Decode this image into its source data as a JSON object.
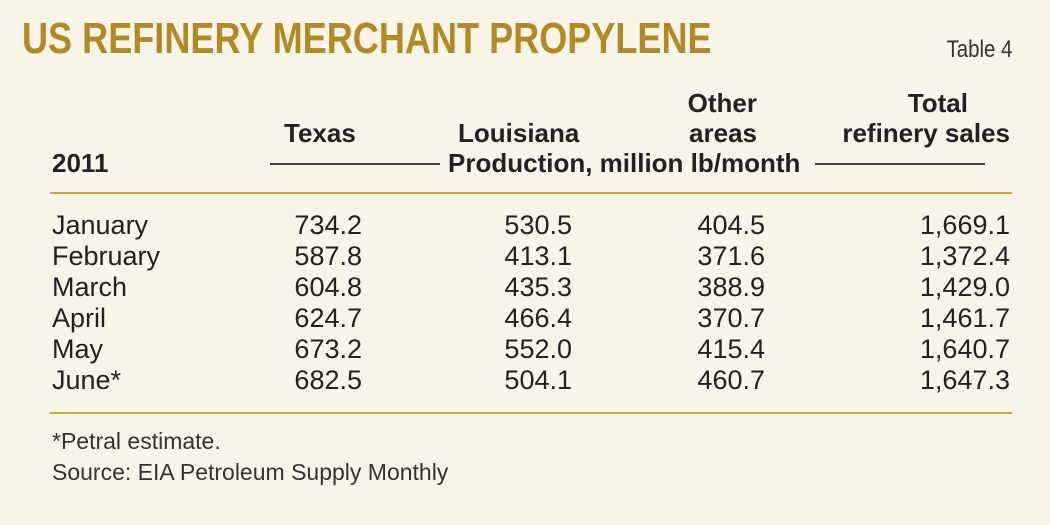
{
  "title": "US REFINERY MERCHANT PROPYLENE",
  "table_number": "Table 4",
  "header": {
    "year": "2011",
    "texas": "Texas",
    "louisiana": "Louisiana",
    "other_line1": "Other",
    "other_line2": "areas",
    "total_line1": "Total",
    "total_line2": "refinery sales",
    "unit": "Production, million lb/month"
  },
  "rows": [
    {
      "month": "January",
      "texas": "734.2",
      "louisiana": "530.5",
      "other": "404.5",
      "total": "1,669.1"
    },
    {
      "month": "February",
      "texas": "587.8",
      "louisiana": "413.1",
      "other": "371.6",
      "total": "1,372.4"
    },
    {
      "month": "March",
      "texas": "604.8",
      "louisiana": "435.3",
      "other": "388.9",
      "total": "1,429.0"
    },
    {
      "month": "April",
      "texas": "624.7",
      "louisiana": "466.4",
      "other": "370.7",
      "total": "1,461.7"
    },
    {
      "month": "May",
      "texas": "673.2",
      "louisiana": "552.0",
      "other": "415.4",
      "total": "1,640.7"
    },
    {
      "month": "June*",
      "texas": "682.5",
      "louisiana": "504.1",
      "other": "460.7",
      "total": "1,647.3"
    }
  ],
  "footnote": "*Petral estimate.",
  "source": "Source: EIA Petroleum Supply Monthly",
  "colors": {
    "title": "#b08a25",
    "rule": "#c9a644",
    "background": "#f8f4e8"
  }
}
